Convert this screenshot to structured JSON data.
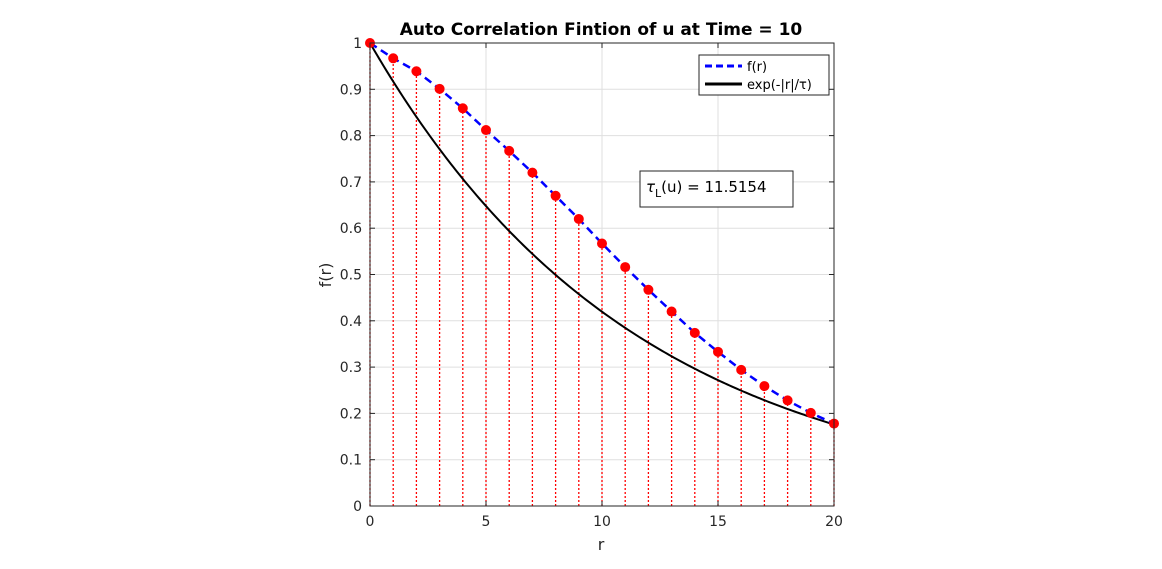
{
  "chart_data": {
    "type": "line",
    "title": "Auto Correlation Fintion of u at Time = 10",
    "xlabel": "r",
    "ylabel": "f(r)",
    "xlim": [
      0,
      20
    ],
    "ylim": [
      0,
      1
    ],
    "xticks": [
      0,
      5,
      10,
      15,
      20
    ],
    "yticks": [
      0,
      0.1,
      0.2,
      0.3,
      0.4,
      0.5,
      0.6,
      0.7,
      0.8,
      0.9,
      1
    ],
    "grid": true,
    "legend_position": "top-right",
    "legend": [
      "f(r)",
      "exp(-|r|/τ)"
    ],
    "series": [
      {
        "name": "f(r)",
        "style": "dashed",
        "color": "#0000ff",
        "x": [
          0,
          1,
          2,
          3,
          4,
          5,
          6,
          7,
          8,
          9,
          10,
          11,
          12,
          13,
          14,
          15,
          16,
          17,
          18,
          19,
          20
        ],
        "y": [
          1.0,
          0.967,
          0.939,
          0.901,
          0.859,
          0.812,
          0.767,
          0.72,
          0.67,
          0.62,
          0.567,
          0.516,
          0.467,
          0.42,
          0.374,
          0.333,
          0.294,
          0.259,
          0.228,
          0.201,
          0.178
        ]
      },
      {
        "name": "exp(-|r|/τ)",
        "style": "solid",
        "color": "#000000",
        "tau": 11.5154
      }
    ],
    "stem_color": "#ff0000",
    "marker_color": "#ff0000",
    "annotation": {
      "label_prefix": "τ",
      "label_sub": "L",
      "label_suffix": "(u) = 11.5154"
    }
  }
}
